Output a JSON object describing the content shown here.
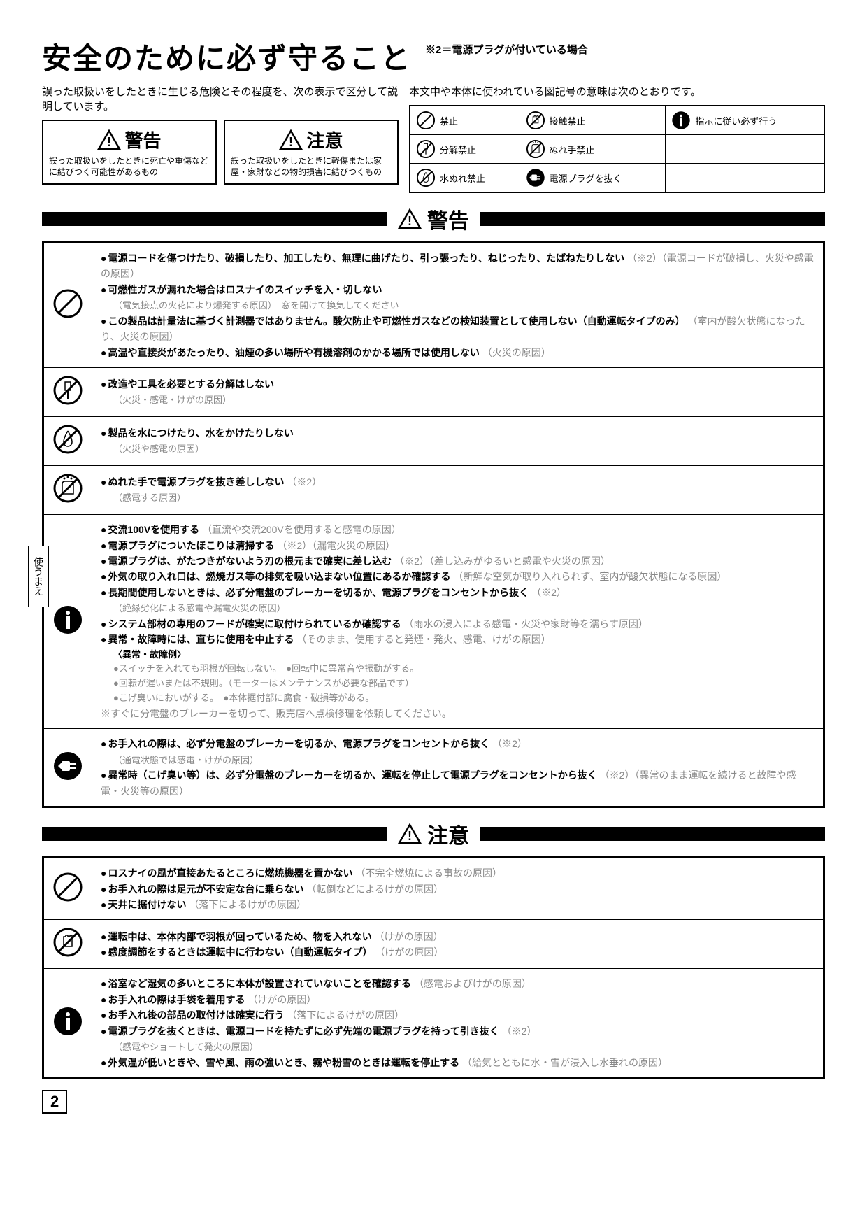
{
  "title": "安全のために必ず守ること",
  "title_note": "※2＝電源プラグが付いている場合",
  "intro_left": "誤った取扱いをしたときに生じる危険とその程度を、次の表示で区分して説明しています。",
  "intro_right": "本文中や本体に使われている図記号の意味は次のとおりです。",
  "warning": {
    "label": "警告",
    "desc": "誤った取扱いをしたときに死亡や重傷などに結びつく可能性があるもの"
  },
  "caution": {
    "label": "注意",
    "desc": "誤った取扱いをしたときに軽傷または家屋・家財などの物的損害に結びつくもの"
  },
  "legend": [
    [
      "禁止",
      "接触禁止",
      "指示に従い必ず行う"
    ],
    [
      "分解禁止",
      "ぬれ手禁止",
      ""
    ],
    [
      "水ぬれ禁止",
      "電源プラグを抜く",
      ""
    ]
  ],
  "section_warning": "警告",
  "section_caution": "注意",
  "w1": [
    {
      "b": "電源コードを傷つけたり、破損したり、加工したり、無理に曲げたり、引っ張ったり、ねじったり、たばねたりしない",
      "g": "（※2）（電源コードが破損し、火災や感電の原因）"
    },
    {
      "b": "可燃性ガスが漏れた場合はロスナイのスイッチを入・切しない",
      "g": "",
      "sub": "（電気接点の火花により爆発する原因）　窓を開けて換気してください"
    },
    {
      "b": "この製品は計量法に基づく計測器ではありません。酸欠防止や可燃性ガスなどの検知装置として使用しない（自動運転タイプのみ）",
      "g": "（室内が酸欠状態になったり、火災の原因）"
    },
    {
      "b": "高温や直接炎があたったり、油煙の多い場所や有機溶剤のかかる場所では使用しない",
      "g": "（火災の原因）"
    }
  ],
  "w2": {
    "b": "改造や工具を必要とする分解はしない",
    "g": "（火災・感電・けがの原因）"
  },
  "w3": {
    "b": "製品を水につけたり、水をかけたりしない",
    "g": "（火災や感電の原因）"
  },
  "w4": {
    "b": "ぬれた手で電源プラグを抜き差ししない",
    "g": "（※2）",
    "sub": "（感電する原因）"
  },
  "w5": [
    {
      "b": "交流100Vを使用する",
      "g": "（直流や交流200Vを使用すると感電の原因）"
    },
    {
      "b": "電源プラグについたほこりは清掃する",
      "g": "（※2）（漏電火災の原因）"
    },
    {
      "b": "電源プラグは、がたつきがないよう刃の根元まで確実に差し込む",
      "g": "（※2）（差し込みがゆるいと感電や火災の原因）"
    },
    {
      "b": "外気の取り入れ口は、燃焼ガス等の排気を吸い込まない位置にあるか確認する",
      "g": "（新鮮な空気が取り入れられず、室内が酸欠状態になる原因）"
    },
    {
      "b": "長期間使用しないときは、必ず分電盤のブレーカーを切るか、電源プラグをコンセントから抜く",
      "g": "（※2）",
      "sub": "（絶縁劣化による感電や漏電火災の原因）"
    },
    {
      "b": "システム部材の専用のフードが確実に取付けられているか確認する",
      "g": "（雨水の浸入による感電・火災や家財等を濡らす原因）"
    },
    {
      "b": "異常・故障時には、直ちに使用を中止する",
      "g": "（そのまま、使用すると発煙・発火、感電、けがの原因）"
    }
  ],
  "w5_examples_title": "〈異常・故障例〉",
  "w5_examples": [
    "スイッチを入れても羽根が回転しない。",
    "回転中に異常音や振動がする。",
    "回転が遅いまたは不規則。（モーターはメンテナンスが必要な部品です）",
    "こげ臭いにおいがする。",
    "本体据付部に腐食・破損等がある。"
  ],
  "w5_footer": "※すぐに分電盤のブレーカーを切って、販売店へ点検修理を依頼してください。",
  "w6": [
    {
      "b": "お手入れの際は、必ず分電盤のブレーカーを切るか、電源プラグをコンセントから抜く",
      "g": "（※2）",
      "sub": "（通電状態では感電・けがの原因）"
    },
    {
      "b": "異常時（こげ臭い等）は、必ず分電盤のブレーカーを切るか、運転を停止して電源プラグをコンセントから抜く",
      "g": "（※2）（異常のまま運転を続けると故障や感電・火災等の原因）"
    }
  ],
  "c1": [
    {
      "b": "ロスナイの風が直接あたるところに燃焼機器を置かない",
      "g": "（不完全燃焼による事故の原因）"
    },
    {
      "b": "お手入れの際は足元が不安定な台に乗らない",
      "g": "（転倒などによるけがの原因）"
    },
    {
      "b": "天井に据付けない",
      "g": "（落下によるけがの原因）"
    }
  ],
  "c2": [
    {
      "b": "運転中は、本体内部で羽根が回っているため、物を入れない",
      "g": "（けがの原因）"
    },
    {
      "b": "感度調節をするときは運転中に行わない（自動運転タイプ）",
      "g": "（けがの原因）"
    }
  ],
  "c3": [
    {
      "b": "浴室など湿気の多いところに本体が設置されていないことを確認する",
      "g": "（感電およびけがの原因）"
    },
    {
      "b": "お手入れの際は手袋を着用する",
      "g": "（けがの原因）"
    },
    {
      "b": "お手入れ後の部品の取付けは確実に行う",
      "g": "（落下によるけがの原因）"
    },
    {
      "b": "電源プラグを抜くときは、電源コードを持たずに必ず先端の電源プラグを持って引き抜く",
      "g": "（※2）",
      "sub": "（感電やショートして発火の原因）"
    },
    {
      "b": "外気温が低いときや、雪や風、雨の強いとき、霧や粉雪のときは運転を停止する",
      "g": "（給気とともに水・雪が浸入し水垂れの原因）"
    }
  ],
  "side_tab": "使うまえ",
  "page": "2"
}
